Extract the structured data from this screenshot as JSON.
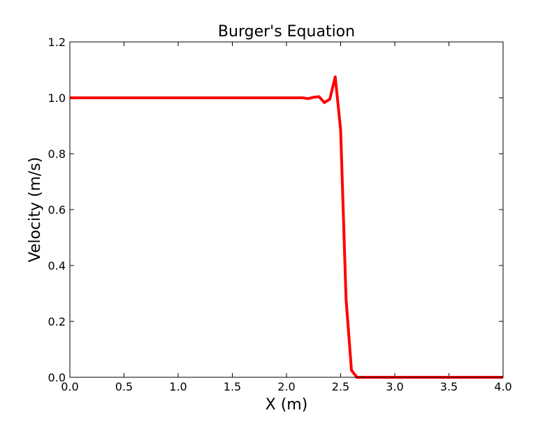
{
  "chart_data": {
    "type": "line",
    "title": "Burger's Equation",
    "xlabel": "X (m)",
    "ylabel": "Velocity (m/s)",
    "xlim": [
      0.0,
      4.0
    ],
    "ylim": [
      0.0,
      1.2
    ],
    "xticks": [
      0.0,
      0.5,
      1.0,
      1.5,
      2.0,
      2.5,
      3.0,
      3.5,
      4.0
    ],
    "xtick_labels": [
      "0.0",
      "0.5",
      "1.0",
      "1.5",
      "2.0",
      "2.5",
      "3.0",
      "3.5",
      "4.0"
    ],
    "yticks": [
      0.0,
      0.2,
      0.4,
      0.6,
      0.8,
      1.0,
      1.2
    ],
    "ytick_labels": [
      "0.0",
      "0.2",
      "0.4",
      "0.6",
      "0.8",
      "1.0",
      "1.2"
    ],
    "grid": false,
    "line_color": "#ff0000",
    "series": [
      {
        "x": [
          0.0,
          0.5,
          1.0,
          1.5,
          2.0,
          2.1,
          2.15,
          2.2,
          2.25,
          2.3,
          2.35,
          2.4,
          2.45,
          2.5,
          2.55,
          2.6,
          2.65,
          2.7,
          3.0,
          3.5,
          4.0
        ],
        "y": [
          1.0,
          1.0,
          1.0,
          1.0,
          1.0,
          1.0,
          1.0,
          0.997,
          1.002,
          1.004,
          0.983,
          0.995,
          1.075,
          0.885,
          0.28,
          0.025,
          0.0,
          0.0,
          0.0,
          0.0,
          0.0
        ]
      }
    ]
  }
}
